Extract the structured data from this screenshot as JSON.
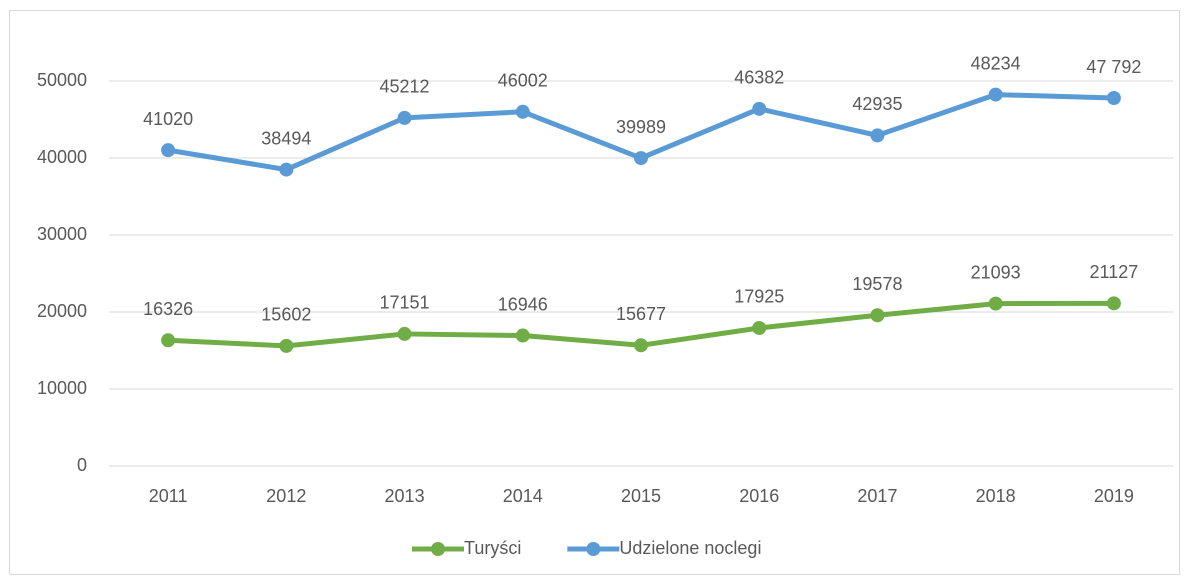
{
  "chart_data": {
    "type": "line",
    "categories": [
      "2011",
      "2012",
      "2013",
      "2014",
      "2015",
      "2016",
      "2017",
      "2018",
      "2019"
    ],
    "series": [
      {
        "name": "Turyści",
        "color": "#70ad47",
        "values": [
          16326,
          15602,
          17151,
          16946,
          15677,
          17925,
          19578,
          21093,
          21127
        ]
      },
      {
        "name": "Udzielone noclegi",
        "color": "#5b9bd5",
        "values": [
          41020,
          38494,
          45212,
          46002,
          39989,
          46382,
          42935,
          48234,
          47792
        ],
        "value_labels": [
          "41020",
          "38494",
          "45212",
          "46002",
          "39989",
          "46382",
          "42935",
          "48234",
          "47 792"
        ]
      }
    ],
    "ylim": [
      0,
      50000
    ],
    "yticks": [
      0,
      10000,
      20000,
      30000,
      40000,
      50000
    ],
    "grid": true,
    "legend": "bottom"
  }
}
